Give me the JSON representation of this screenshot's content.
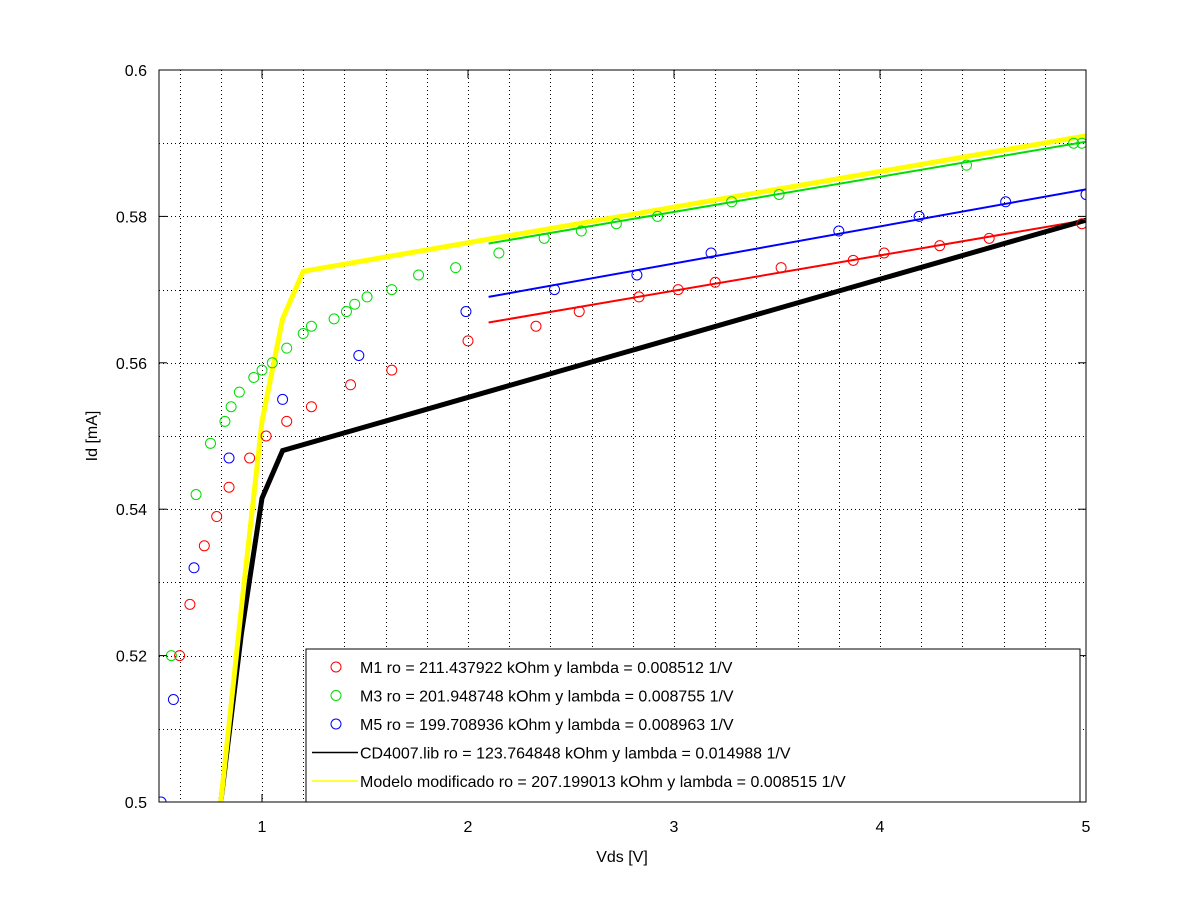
{
  "chart_data": {
    "type": "scatter",
    "title": "",
    "xlabel": "Vds [V]",
    "ylabel": "Id [mA]",
    "xlim": [
      0.5,
      5
    ],
    "ylim": [
      0.5,
      0.6
    ],
    "grid": true,
    "legend_position": "bottom-right",
    "xticks": [
      1,
      2,
      3,
      4,
      5
    ],
    "xtick_labels": [
      "1",
      "2",
      "3",
      "4",
      "5"
    ],
    "yticks": [
      0.5,
      0.52,
      0.54,
      0.56,
      0.58,
      0.6
    ],
    "ytick_labels": [
      "0.5",
      "0.52",
      "0.54",
      "0.56",
      "0.58",
      "0.6"
    ],
    "series": [
      {
        "name": "M1 ro = 211.437922 kOhm y lambda = 0.008512 1/V",
        "kind": "markers",
        "color": "#ff0000",
        "points": [
          [
            0.6,
            0.52
          ],
          [
            0.65,
            0.527
          ],
          [
            0.72,
            0.535
          ],
          [
            0.78,
            0.539
          ],
          [
            0.84,
            0.543
          ],
          [
            0.94,
            0.547
          ],
          [
            1.02,
            0.55
          ],
          [
            1.12,
            0.552
          ],
          [
            1.24,
            0.554
          ],
          [
            1.43,
            0.557
          ],
          [
            1.63,
            0.559
          ],
          [
            2.0,
            0.563
          ],
          [
            2.33,
            0.565
          ],
          [
            2.54,
            0.567
          ],
          [
            2.83,
            0.569
          ],
          [
            3.02,
            0.57
          ],
          [
            3.2,
            0.571
          ],
          [
            3.52,
            0.573
          ],
          [
            3.87,
            0.574
          ],
          [
            4.02,
            0.575
          ],
          [
            4.29,
            0.576
          ],
          [
            4.53,
            0.577
          ],
          [
            4.98,
            0.579
          ]
        ]
      },
      {
        "name": "M3 ro = 201.948748 kOhm y lambda = 0.008755 1/V",
        "kind": "markers",
        "color": "#00dd00",
        "points": [
          [
            0.56,
            0.52
          ],
          [
            0.68,
            0.542
          ],
          [
            0.75,
            0.549
          ],
          [
            0.82,
            0.552
          ],
          [
            0.85,
            0.554
          ],
          [
            0.89,
            0.556
          ],
          [
            0.96,
            0.558
          ],
          [
            1.0,
            0.559
          ],
          [
            1.05,
            0.56
          ],
          [
            1.12,
            0.562
          ],
          [
            1.2,
            0.564
          ],
          [
            1.24,
            0.565
          ],
          [
            1.35,
            0.566
          ],
          [
            1.41,
            0.567
          ],
          [
            1.45,
            0.568
          ],
          [
            1.51,
            0.569
          ],
          [
            1.63,
            0.57
          ],
          [
            1.76,
            0.572
          ],
          [
            1.94,
            0.573
          ],
          [
            2.15,
            0.575
          ],
          [
            2.37,
            0.577
          ],
          [
            2.55,
            0.578
          ],
          [
            2.72,
            0.579
          ],
          [
            2.92,
            0.58
          ],
          [
            3.28,
            0.582
          ],
          [
            3.51,
            0.583
          ],
          [
            4.42,
            0.587
          ],
          [
            4.94,
            0.59
          ],
          [
            4.98,
            0.59
          ]
        ]
      },
      {
        "name": "M5 ro = 199.708936 kOhm y lambda = 0.008963 1/V",
        "kind": "markers",
        "color": "#0000ff",
        "points": [
          [
            0.51,
            0.5
          ],
          [
            0.57,
            0.514
          ],
          [
            0.67,
            0.532
          ],
          [
            0.84,
            0.547
          ],
          [
            1.1,
            0.555
          ],
          [
            1.47,
            0.561
          ],
          [
            1.99,
            0.567
          ],
          [
            2.42,
            0.57
          ],
          [
            2.82,
            0.572
          ],
          [
            3.18,
            0.575
          ],
          [
            3.8,
            0.578
          ],
          [
            4.19,
            0.58
          ],
          [
            4.61,
            0.582
          ],
          [
            5.0,
            0.583
          ]
        ]
      },
      {
        "name": "CD4007.lib ro = 123.764848 kOhm y lambda = 0.014988 1/V",
        "kind": "line",
        "color": "#000000",
        "points": [
          [
            0.8,
            0.5
          ],
          [
            0.9,
            0.523
          ],
          [
            1.0,
            0.5415
          ],
          [
            1.1,
            0.548
          ],
          [
            5.0,
            0.5795
          ]
        ]
      },
      {
        "name": "Modelo modificado ro = 207.199013 kOhm y lambda = 0.008515 1/V",
        "kind": "line",
        "color": "#ffff00",
        "points": [
          [
            0.8,
            0.5
          ],
          [
            0.9,
            0.5265
          ],
          [
            1.0,
            0.552
          ],
          [
            1.1,
            0.566
          ],
          [
            1.2,
            0.5725
          ],
          [
            5.0,
            0.591
          ]
        ]
      },
      {
        "name": "",
        "kind": "fit",
        "color": "#ff0000",
        "points": [
          [
            2.1,
            0.5655
          ],
          [
            5.0,
            0.5795
          ]
        ]
      },
      {
        "name": "",
        "kind": "fit",
        "color": "#00dd00",
        "points": [
          [
            2.1,
            0.5763
          ],
          [
            5.0,
            0.5902
          ]
        ]
      },
      {
        "name": "",
        "kind": "fit",
        "color": "#0000ff",
        "points": [
          [
            2.1,
            0.569
          ],
          [
            5.0,
            0.5837
          ]
        ]
      }
    ]
  }
}
